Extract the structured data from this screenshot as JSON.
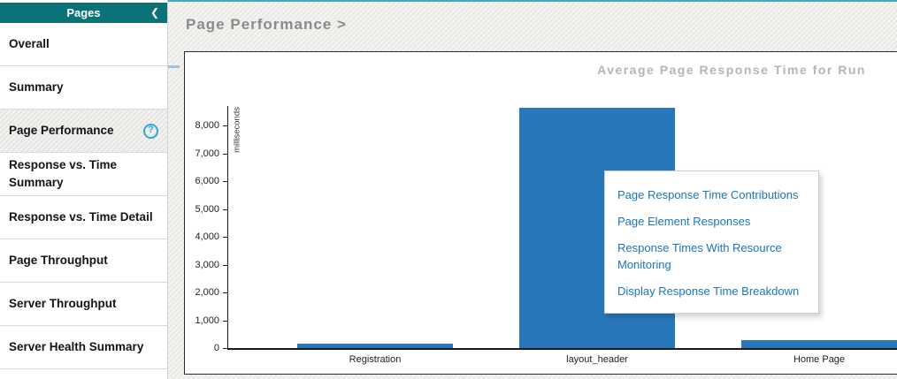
{
  "sidebar": {
    "header": {
      "title": "Pages",
      "collapse_icon": "❮"
    },
    "items": [
      {
        "label": "Overall",
        "active": false,
        "has_help": false
      },
      {
        "label": "Summary",
        "active": false,
        "has_help": false
      },
      {
        "label": "Page Performance",
        "active": true,
        "has_help": true,
        "help_glyph": "?"
      },
      {
        "label": "Response vs. Time Summary",
        "active": false,
        "has_help": false
      },
      {
        "label": "Response vs. Time Detail",
        "active": false,
        "has_help": false
      },
      {
        "label": "Page Throughput",
        "active": false,
        "has_help": false
      },
      {
        "label": "Server Throughput",
        "active": false,
        "has_help": false
      },
      {
        "label": "Server Health Summary",
        "active": false,
        "has_help": false
      }
    ]
  },
  "main": {
    "breadcrumb": "Page Performance >"
  },
  "context_menu": {
    "items": [
      "Page Response Time Contributions",
      "Page Element Responses",
      "Response Times With Resource Monitoring",
      "Display Response Time Breakdown"
    ]
  },
  "chart_data": {
    "type": "bar",
    "title": "Average Page Response Time for Run",
    "ylabel": "milliseconds",
    "xlabel": "",
    "categories": [
      "Registration",
      "layout_header",
      "Home Page"
    ],
    "values": [
      170,
      8630,
      280
    ],
    "ylim": [
      0,
      8700
    ],
    "ytick_step": 1000,
    "grid": false,
    "legend": false
  },
  "colors": {
    "accent_teal": "#0b7377",
    "bar_blue": "#2878b9",
    "link_blue": "#1b75bb",
    "help_cyan": "#2fa8d8",
    "top_line_blue": "#45a5c8"
  }
}
